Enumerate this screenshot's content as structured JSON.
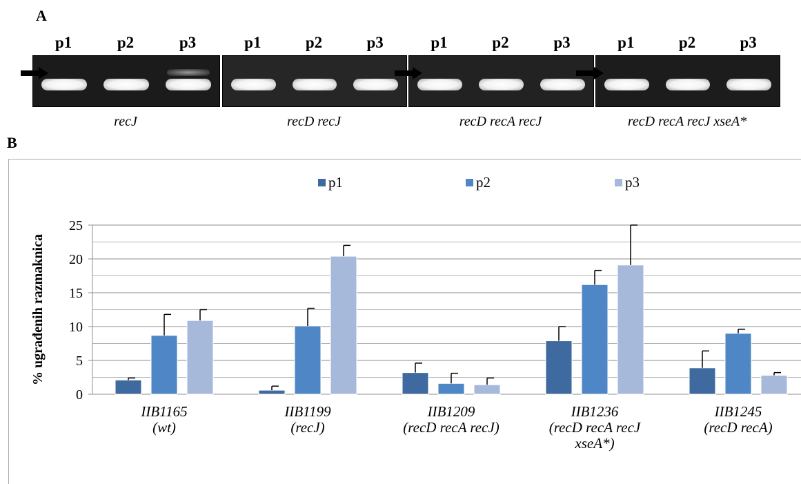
{
  "panel_a": {
    "letter": "A",
    "lane_labels": [
      "p1",
      "p2",
      "p3"
    ],
    "gels": [
      {
        "caption": "recJ"
      },
      {
        "caption": "recD recJ"
      },
      {
        "caption": "recD recA recJ"
      },
      {
        "caption": "recD recA recJ xseA*"
      }
    ]
  },
  "panel_b": {
    "letter": "B"
  },
  "chart_data": {
    "type": "bar",
    "ylabel": "% ugrađenih razmaknica",
    "ylim": [
      0,
      25
    ],
    "yticks": [
      0,
      5,
      10,
      15,
      20,
      25
    ],
    "grid": true,
    "legend_position": "top-center",
    "categories": [
      [
        "IIB1165",
        "(wt)"
      ],
      [
        "IIB1199",
        "(recJ)"
      ],
      [
        "IIB1209",
        "(recD recA recJ)"
      ],
      [
        "IIB1236",
        "(recD recA recJ",
        "xseA*)"
      ],
      [
        "IIB1245",
        "(recD recA)"
      ]
    ],
    "series": [
      {
        "name": "p1",
        "color": "#3e6a9f",
        "values": [
          2.1,
          0.6,
          3.2,
          7.9,
          3.9
        ],
        "errors": [
          0.3,
          0.6,
          1.4,
          2.1,
          2.5
        ]
      },
      {
        "name": "p2",
        "color": "#4f86c6",
        "values": [
          8.7,
          10.1,
          1.6,
          16.2,
          9.0
        ],
        "errors": [
          3.1,
          2.6,
          1.5,
          2.1,
          0.6
        ]
      },
      {
        "name": "p3",
        "color": "#a7b9db",
        "values": [
          10.9,
          20.4,
          1.4,
          19.1,
          2.8
        ],
        "errors": [
          1.6,
          1.6,
          1.0,
          5.9,
          0.4
        ]
      }
    ]
  }
}
